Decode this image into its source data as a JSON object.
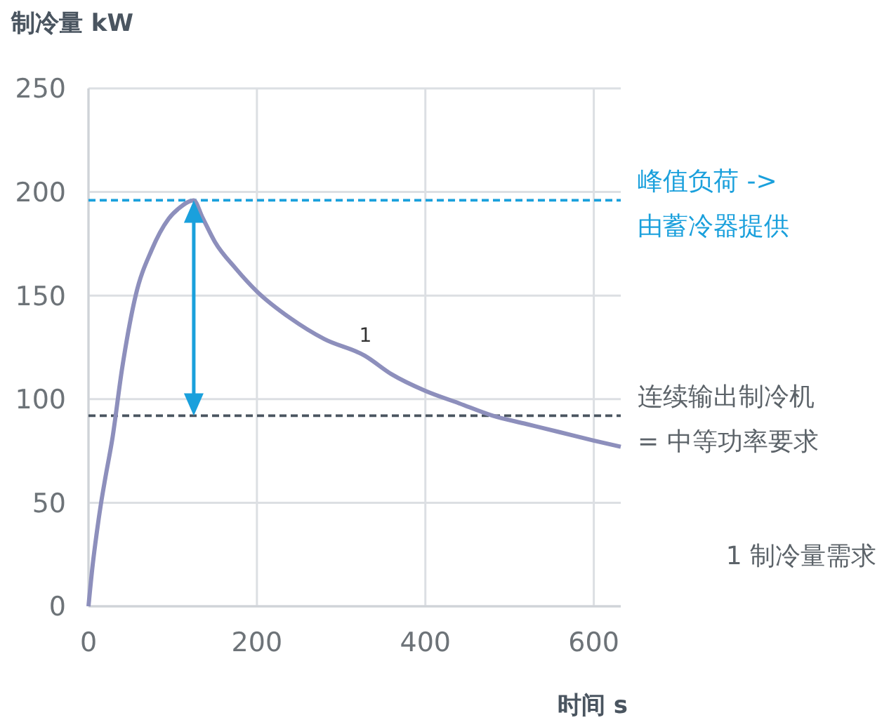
{
  "chart_data": {
    "type": "line",
    "ylabel": "制冷量 kW",
    "xlabel": "时间 s",
    "x": [
      0,
      5,
      10,
      15,
      20,
      28,
      40,
      56,
      75,
      95,
      110,
      120,
      125,
      135,
      150,
      175,
      200,
      240,
      280,
      328,
      360,
      400,
      440,
      480,
      520,
      560,
      600,
      632
    ],
    "series": [
      {
        "color": "#8d8fbc",
        "values": [
          0,
          20,
          36,
          50,
          62,
          80,
          115,
          150,
          172,
          187,
          193,
          195.5,
          196,
          188,
          176,
          163,
          152,
          139,
          129,
          121,
          112,
          104,
          98,
          92,
          88,
          84,
          80,
          77
        ]
      }
    ],
    "xlim": [
      0,
      632
    ],
    "ylim": [
      0,
      250
    ],
    "xticks": [
      0,
      200,
      400,
      600
    ],
    "yticks": [
      0,
      50,
      100,
      150,
      200,
      250
    ],
    "grid": true,
    "marker": "none",
    "line_style": "solid",
    "ref_lines": [
      {
        "axis": "y",
        "value": 196,
        "label": "峰值负荷 ->\n由蓄冷器提供",
        "color": "#1aa0dc",
        "line_style": "dashed"
      },
      {
        "axis": "y",
        "value": 92,
        "label": "连续输出制冷机\n= 中等功率要求",
        "color": "#4a5560",
        "line_style": "dashed"
      }
    ],
    "annotations": [
      {
        "text": "1",
        "x": 328,
        "y": 121
      },
      "1 制冷量需求"
    ]
  }
}
